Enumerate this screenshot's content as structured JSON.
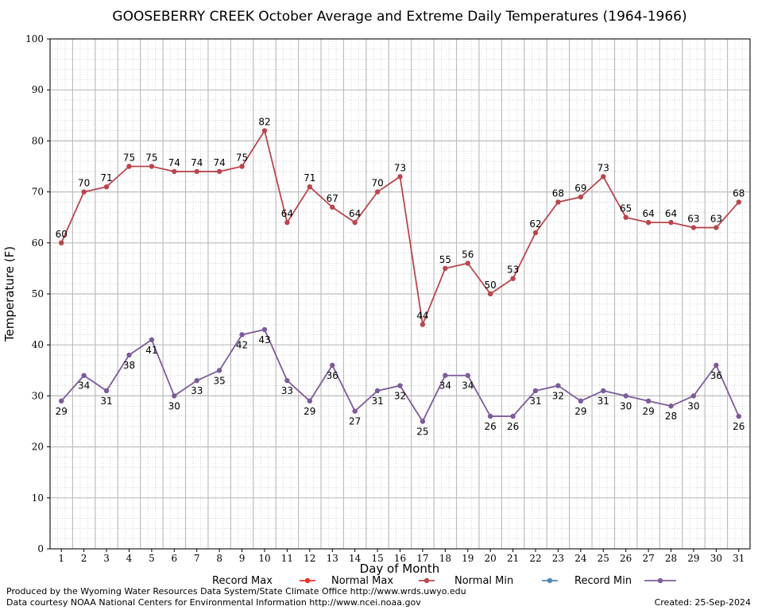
{
  "chart_data": {
    "type": "line",
    "title": "GOOSEBERRY CREEK October Average and Extreme Daily Temperatures (1964-1966)",
    "xlabel": "Day of Month",
    "ylabel": "Temperature (F)",
    "ylim": [
      0,
      100
    ],
    "yticks": [
      0,
      10,
      20,
      30,
      40,
      50,
      60,
      70,
      80,
      90,
      100
    ],
    "x": [
      1,
      2,
      3,
      4,
      5,
      6,
      7,
      8,
      9,
      10,
      11,
      12,
      13,
      14,
      15,
      16,
      17,
      18,
      19,
      20,
      21,
      22,
      23,
      24,
      25,
      26,
      27,
      28,
      29,
      30,
      31
    ],
    "grid": true,
    "legend_position": "bottom",
    "legend": [
      {
        "name": "Record Max",
        "color": "#e8302a"
      },
      {
        "name": "Normal Max",
        "color": "#b8474d"
      },
      {
        "name": "Normal Min",
        "color": "#4a86b5"
      },
      {
        "name": "Record Min",
        "color": "#7d5b9a"
      }
    ],
    "series": [
      {
        "name": "Normal Max",
        "color": "#b8474d",
        "label_position": "above",
        "values": [
          60,
          70,
          71,
          75,
          75,
          74,
          74,
          74,
          75,
          82,
          64,
          71,
          67,
          64,
          70,
          73,
          44,
          55,
          56,
          50,
          53,
          62,
          68,
          69,
          73,
          65,
          64,
          64,
          63,
          63,
          68
        ]
      },
      {
        "name": "Record Min",
        "color": "#7d5b9a",
        "label_position": "below",
        "values": [
          29,
          34,
          31,
          38,
          41,
          30,
          33,
          35,
          42,
          43,
          33,
          29,
          36,
          27,
          31,
          32,
          25,
          34,
          34,
          26,
          26,
          31,
          32,
          29,
          31,
          30,
          29,
          28,
          30,
          36,
          26
        ]
      }
    ]
  },
  "footer": {
    "credit_line1": "Produced by the Wyoming Water Resources Data System/State Climate Office http://www.wrds.uwyo.edu",
    "credit_line2": "Data courtesy NOAA National Centers for Environmental Information http://www.ncei.noaa.gov",
    "created": "Created: 25-Sep-2024"
  }
}
